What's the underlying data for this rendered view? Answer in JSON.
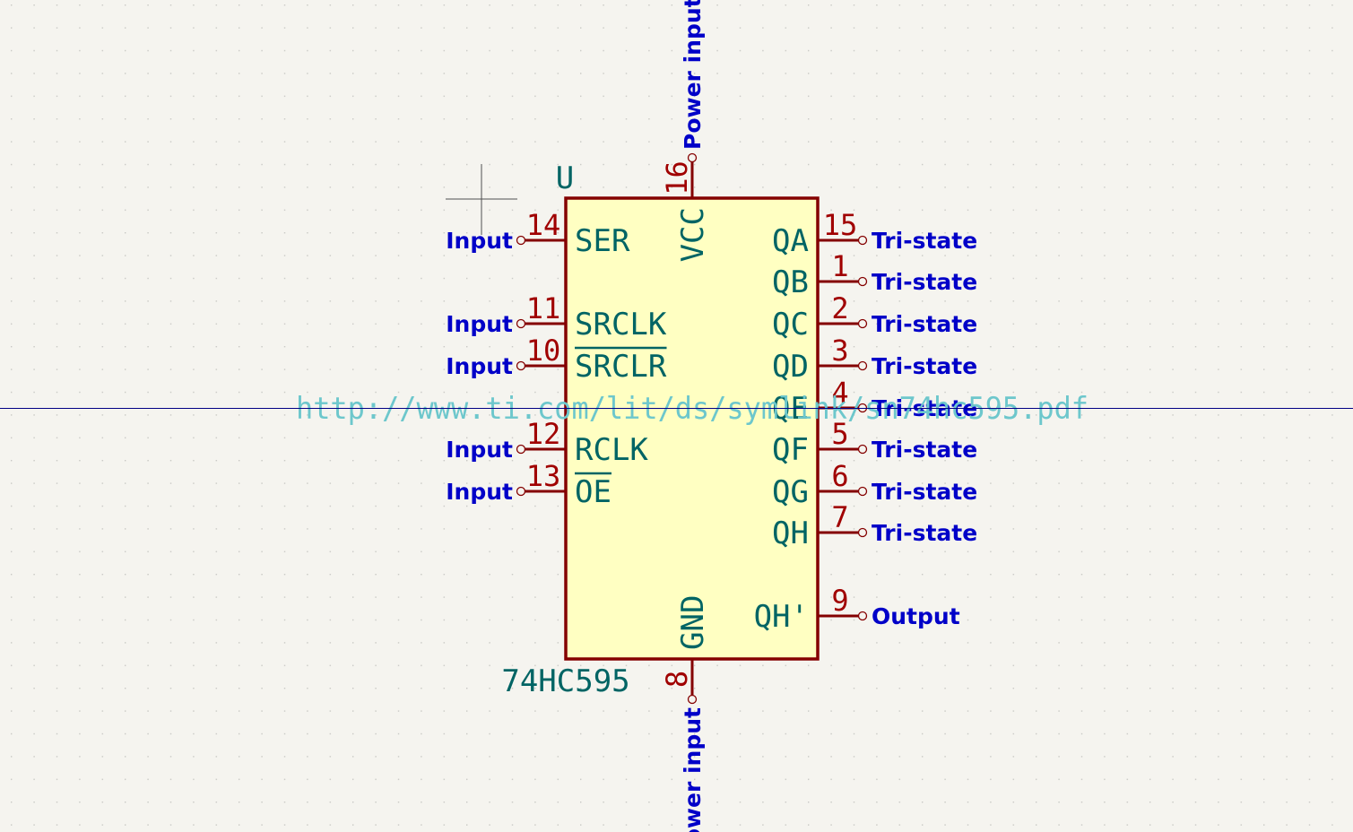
{
  "colors": {
    "background": "#f5f4ef",
    "grid_dot": "#c8c8c4",
    "body_fill": "#ffffc2",
    "body_outline": "#840000",
    "pin_line": "#840000",
    "pin_number": "#a00000",
    "pin_name": "#006464",
    "pin_type": "#0000c8",
    "reference": "#006464",
    "value": "#006464",
    "datasheet": "#6dc7cc",
    "crosshair": "#000084",
    "cursor": "#505050"
  },
  "symbol": {
    "reference": "U",
    "value": "74HC595",
    "datasheet": "http://www.ti.com/lit/ds/symlink/sn74hc595.pdf"
  },
  "pins": [
    {
      "number": "14",
      "name": "SER",
      "type": "Input",
      "side": "left",
      "overbar": false
    },
    {
      "number": "11",
      "name": "SRCLK",
      "type": "Input",
      "side": "left",
      "overbar": false
    },
    {
      "number": "10",
      "name": "SRCLR",
      "type": "Input",
      "side": "left",
      "overbar": true
    },
    {
      "number": "12",
      "name": "RCLK",
      "type": "Input",
      "side": "left",
      "overbar": false
    },
    {
      "number": "13",
      "name": "OE",
      "type": "Input",
      "side": "left",
      "overbar": true
    },
    {
      "number": "15",
      "name": "QA",
      "type": "Tri-state",
      "side": "right",
      "overbar": false
    },
    {
      "number": "1",
      "name": "QB",
      "type": "Tri-state",
      "side": "right",
      "overbar": false
    },
    {
      "number": "2",
      "name": "QC",
      "type": "Tri-state",
      "side": "right",
      "overbar": false
    },
    {
      "number": "3",
      "name": "QD",
      "type": "Tri-state",
      "side": "right",
      "overbar": false
    },
    {
      "number": "4",
      "name": "QE",
      "type": "Tri-state",
      "side": "right",
      "overbar": false
    },
    {
      "number": "5",
      "name": "QF",
      "type": "Tri-state",
      "side": "right",
      "overbar": false
    },
    {
      "number": "6",
      "name": "QG",
      "type": "Tri-state",
      "side": "right",
      "overbar": false
    },
    {
      "number": "7",
      "name": "QH",
      "type": "Tri-state",
      "side": "right",
      "overbar": false
    },
    {
      "number": "9",
      "name": "QH'",
      "type": "Output",
      "side": "right",
      "overbar": false
    },
    {
      "number": "16",
      "name": "VCC",
      "type": "Power input",
      "side": "top",
      "overbar": false
    },
    {
      "number": "8",
      "name": "GND",
      "type": "Power input",
      "side": "bottom",
      "overbar": false
    }
  ]
}
